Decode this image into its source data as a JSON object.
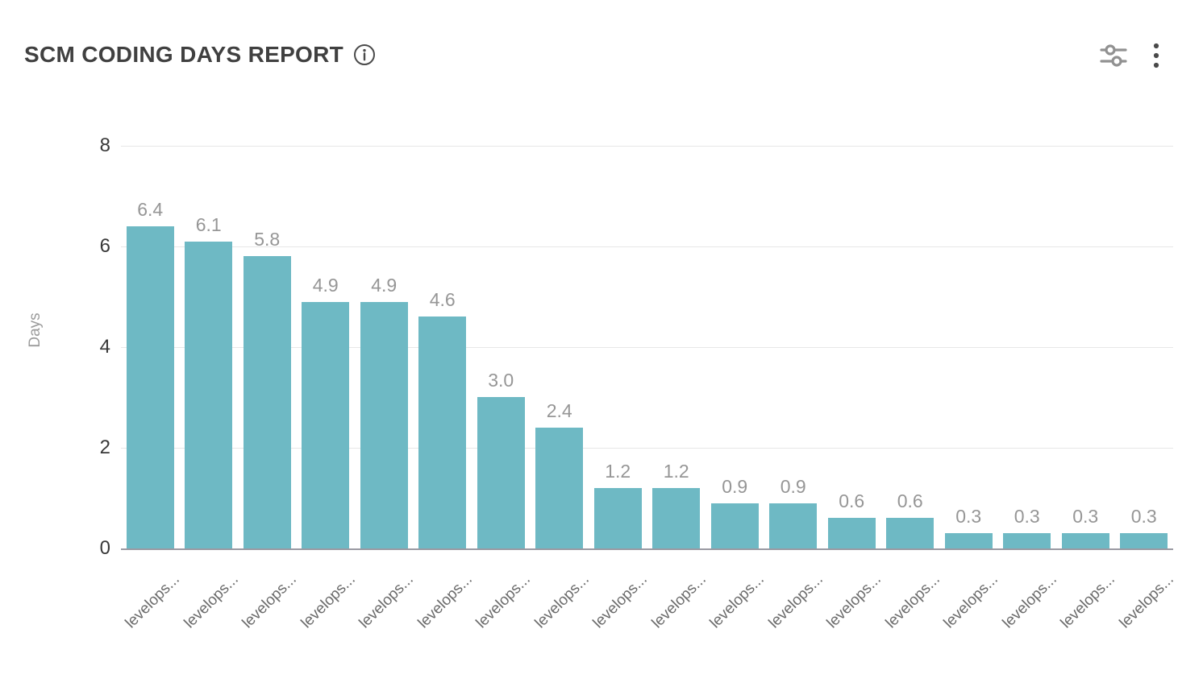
{
  "header": {
    "title": "SCM CODING DAYS REPORT"
  },
  "icons": {
    "info": "info-icon",
    "filters": "filter-sliders-icon",
    "menu": "kebab-menu-icon"
  },
  "colors": {
    "bar": "#6eb9c4",
    "title_text": "#404040",
    "value_label": "#969696",
    "y_tick_label": "#383838",
    "x_tick_label": "#6b6b6b",
    "gridline": "#e7e7e7",
    "axis_line": "#9a9aa2",
    "icon_gray": "#919191",
    "icon_dark": "#4a4a4a"
  },
  "chart_data": {
    "type": "bar",
    "title": "SCM CODING DAYS REPORT",
    "xlabel": "",
    "ylabel": "Days",
    "ylim": [
      0,
      8
    ],
    "yticks": [
      0,
      2,
      4,
      6,
      8
    ],
    "grid": true,
    "legend": false,
    "bar_color": "#6eb9c4",
    "value_label_format": "one_decimal",
    "categories": [
      "levelops...",
      "levelops...",
      "levelops...",
      "levelops...",
      "levelops...",
      "levelops...",
      "levelops...",
      "levelops...",
      "levelops...",
      "levelops...",
      "levelops...",
      "levelops...",
      "levelops...",
      "levelops...",
      "levelops...",
      "levelops...",
      "levelops...",
      "levelops..."
    ],
    "values": [
      6.4,
      6.1,
      5.8,
      4.9,
      4.9,
      4.6,
      3.0,
      2.4,
      1.2,
      1.2,
      0.9,
      0.9,
      0.6,
      0.6,
      0.3,
      0.3,
      0.3,
      0.3
    ]
  }
}
